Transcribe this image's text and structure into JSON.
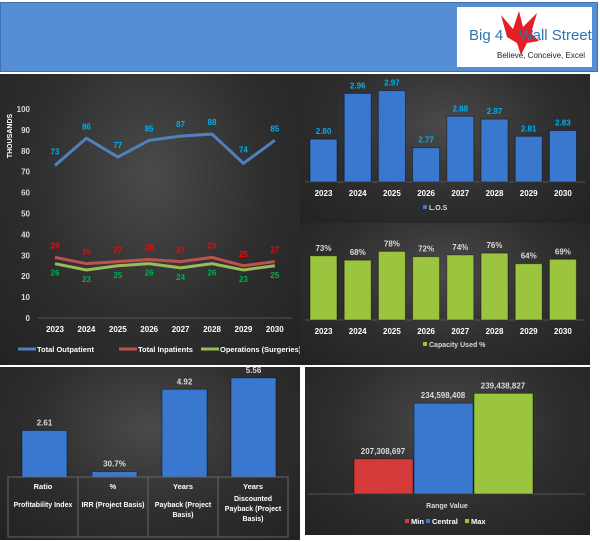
{
  "header": {
    "logo": {
      "brand_left": "Big 4",
      "brand_right": "Wall Street",
      "tagline": "Believe, Conceive, Excel",
      "logo_color": "#e31e24"
    }
  },
  "chart_data": [
    {
      "id": "volumes",
      "type": "line",
      "categories": [
        "2023",
        "2024",
        "2025",
        "2026",
        "2027",
        "2028",
        "2029",
        "2030"
      ],
      "ylabel": "THOUSANDS",
      "ylim": [
        0,
        100
      ],
      "yticks": [
        "0",
        "10",
        "20",
        "30",
        "40",
        "50",
        "60",
        "70",
        "80",
        "90",
        "100"
      ],
      "legend_position": "bottom",
      "grid": false,
      "series": [
        {
          "name": "Total Outpatient",
          "values": [
            73,
            86,
            77,
            85,
            87,
            88,
            74,
            85
          ],
          "color": "#4f81bd",
          "label_color": "#00b0f0"
        },
        {
          "name": "Total Inpatients",
          "values": [
            29,
            26,
            27,
            28,
            27,
            29,
            25,
            27
          ],
          "color": "#c0504d",
          "label_color": "#ff0000"
        },
        {
          "name": "Operations (Surgeries)",
          "values": [
            26,
            23,
            25,
            26,
            24,
            26,
            23,
            25
          ],
          "color": "#9bbb59",
          "label_color": "#00b050"
        }
      ]
    },
    {
      "id": "los",
      "type": "bar",
      "categories": [
        "2023",
        "2024",
        "2025",
        "2026",
        "2027",
        "2028",
        "2029",
        "2030"
      ],
      "values": [
        2.8,
        2.96,
        2.97,
        2.77,
        2.88,
        2.87,
        2.81,
        2.83
      ],
      "labels": [
        "2.80",
        "2.96",
        "2.97",
        "2.77",
        "2.88",
        "2.87",
        "2.81",
        "2.83"
      ],
      "series_name": "L.O.S",
      "color": "#3a78cf",
      "label_color": "#00b0f0",
      "ylim": [
        2.65,
        3.0
      ],
      "legend_position": "bottom"
    },
    {
      "id": "capacity",
      "type": "bar",
      "categories": [
        "2023",
        "2024",
        "2025",
        "2026",
        "2027",
        "2028",
        "2029",
        "2030"
      ],
      "values": [
        0.73,
        0.68,
        0.78,
        0.72,
        0.74,
        0.76,
        0.64,
        0.69
      ],
      "labels": [
        "73%",
        "68%",
        "78%",
        "72%",
        "74%",
        "76%",
        "64%",
        "69%"
      ],
      "series_name": "Capacity Used %",
      "color": "#9bc43f",
      "label_color": "#d9d9d9",
      "ylim": [
        0,
        1
      ],
      "legend_position": "bottom"
    },
    {
      "id": "financial",
      "type": "bar",
      "categories": [
        {
          "unit": "Ratio",
          "name": "Profitability Index"
        },
        {
          "unit": "%",
          "name": "IRR (Project Basis)"
        },
        {
          "unit": "Years",
          "name": "Payback  (Project Basis)"
        },
        {
          "unit": "Years",
          "name": "Discounted Payback  (Project Basis)"
        }
      ],
      "values": [
        2.61,
        0.307,
        4.92,
        5.56
      ],
      "labels": [
        "2.61",
        "30.7%",
        "4.92",
        "5.56"
      ],
      "color": "#3a78cf",
      "label_color": "#d9d9d9",
      "ylim": [
        0,
        6
      ]
    },
    {
      "id": "range",
      "type": "bar",
      "xlabel": "Range Value",
      "ylim": [
        190000000,
        245000000
      ],
      "legend_position": "bottom",
      "series": [
        {
          "name": "Min",
          "value": 207308697,
          "label": "207,308,697",
          "color": "#d43a3a"
        },
        {
          "name": "Central",
          "value": 234598408,
          "label": "234,598,408",
          "color": "#3a78cf"
        },
        {
          "name": "Max",
          "value": 239438827,
          "label": "239,438,827",
          "color": "#9bc43f"
        }
      ]
    }
  ]
}
